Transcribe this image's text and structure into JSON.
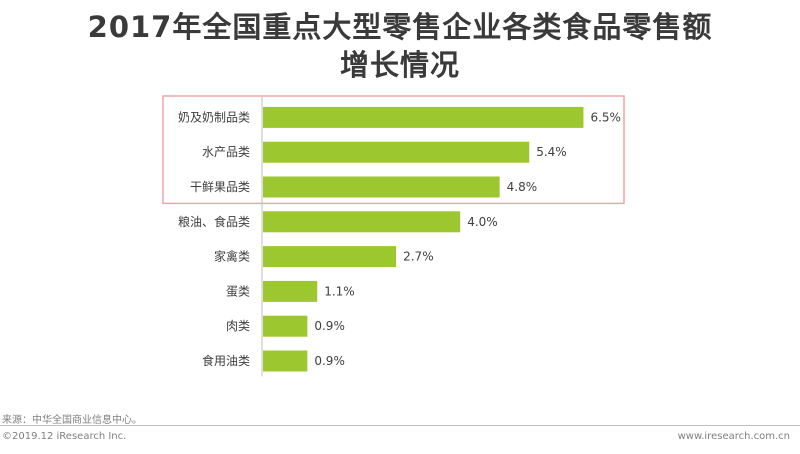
{
  "title_line1": "2017年全国重点大型零售企业各类食品零售额",
  "title_line2": "增长情况",
  "chart_data": {
    "type": "bar",
    "orientation": "horizontal",
    "categories": [
      "奶及奶制品类",
      "水产品类",
      "干鲜果品类",
      "粮油、食品类",
      "家禽类",
      "蛋类",
      "肉类",
      "食用油类"
    ],
    "values": [
      6.5,
      5.4,
      4.8,
      4.0,
      2.7,
      1.1,
      0.9,
      0.9
    ],
    "labels": [
      "6.5%",
      "5.4%",
      "4.8%",
      "4.0%",
      "2.7%",
      "1.1%",
      "0.9%",
      "0.9%"
    ],
    "value_unit": "%",
    "bar_color": "#9dc72e",
    "highlight_color": "#e8a8a8",
    "highlighted_categories": [
      "奶及奶制品类",
      "水产品类",
      "干鲜果品类"
    ],
    "grid": false,
    "legend": false
  },
  "footer": {
    "source": "来源：中华全国商业信息中心。",
    "copyright": "©2019.12 iResearch Inc.",
    "website": "www.iresearch.com.cn"
  }
}
